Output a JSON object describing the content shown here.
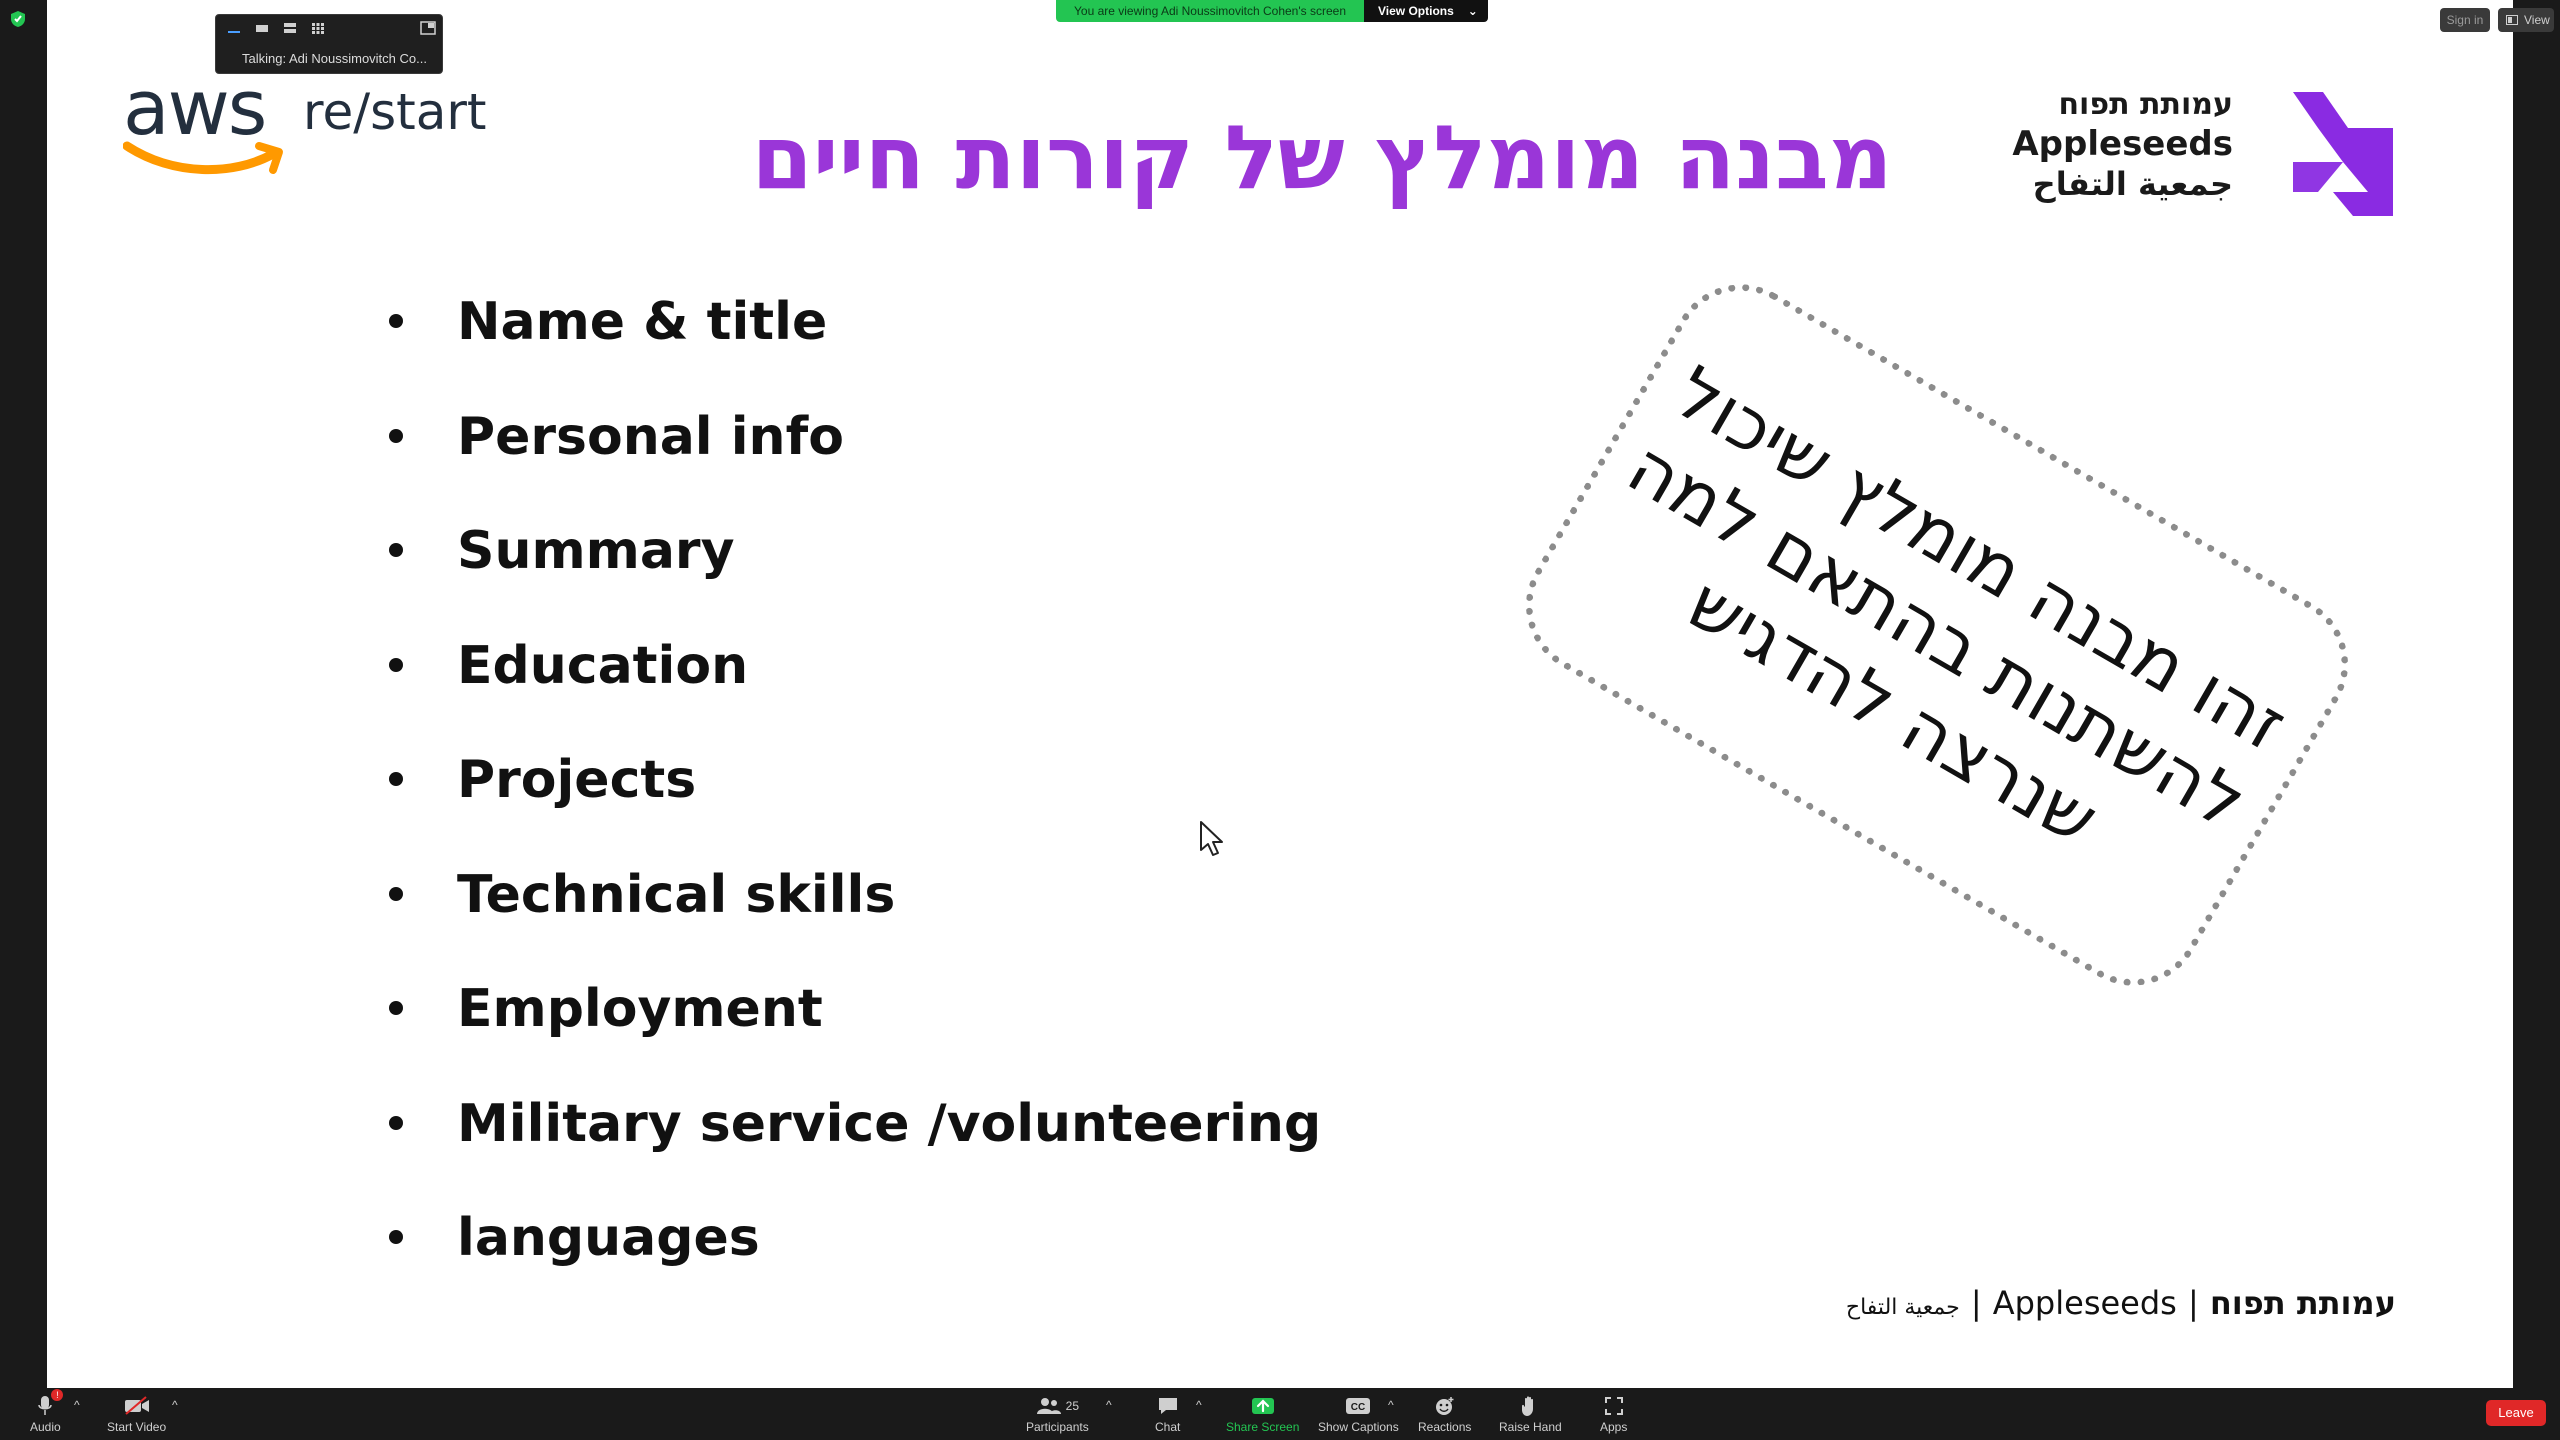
{
  "banner": {
    "viewing_text": "You are viewing Adi Noussimovitch Cohen's screen",
    "options_label": "View Options",
    "options_caret": "⌄"
  },
  "talking_panel": {
    "text": "Talking: Adi Noussimovitch Co..."
  },
  "top_right": {
    "signin_label": "Sign in",
    "view_label": "View"
  },
  "slide": {
    "aws_logo": {
      "word": "aws",
      "suffix": "re/start"
    },
    "title": "מבנה מומלץ של קורות חיים",
    "appleseeds_logo": {
      "hebrew": "עמותת תפוח",
      "english": "Appleseeds",
      "arabic": "جمعية التفاح"
    },
    "bullets": [
      "Name & title",
      "Personal info",
      "Summary",
      "Education",
      "Projects",
      "Technical skills",
      "Employment",
      "Military service /volunteering",
      "languages"
    ],
    "note": {
      "line1": "זהו מבנה מומלץ שיכול",
      "line2": "להשתנות בהתאם למה",
      "line3": "שנרצה להדגיש"
    },
    "footer": {
      "arabic": "جمعية التفاح",
      "separator": "|",
      "english": "Appleseeds",
      "hebrew": "עמותת תפוח"
    }
  },
  "toolbar": {
    "audio_label": "Audio",
    "audio_badge": "!",
    "video_label": "Start Video",
    "participants_label": "Participants",
    "participants_count": "25",
    "chat_label": "Chat",
    "share_label": "Share Screen",
    "captions_label": "Show Captions",
    "reactions_label": "Reactions",
    "raise_hand_label": "Raise Hand",
    "apps_label": "Apps",
    "leave_label": "Leave",
    "caret": "^"
  },
  "colors": {
    "title_purple": "#9a36d8",
    "appleseeds_purple": "#8a2be2",
    "aws_orange": "#ff9900",
    "banner_green": "#23c552",
    "leave_red": "#e02828"
  }
}
